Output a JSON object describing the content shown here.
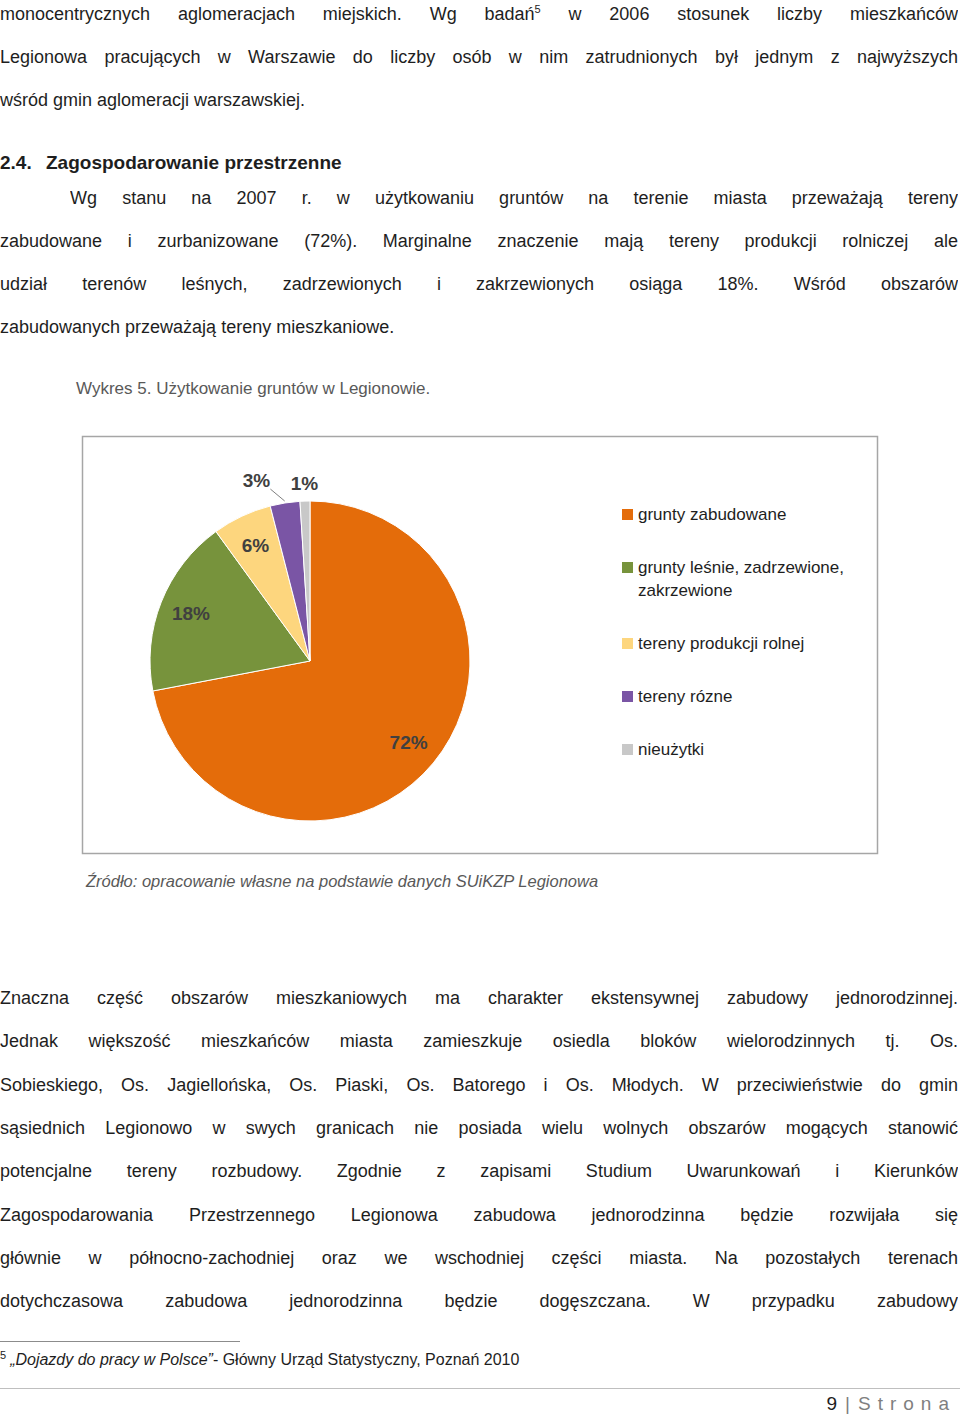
{
  "intro": {
    "lines": [
      {
        "text": "monocentrycznych aglomeracjach miejskich. Wg badań",
        "ref": "5",
        "after": " w 2006 stosunek liczby mieszkańców"
      },
      "Legionowa pracujących w Warszawie do liczby osób w nim zatrudnionych był jednym z najwyższych",
      "wśród gmin aglomeracji warszawskiej."
    ]
  },
  "heading": {
    "number": "2.4.",
    "title": "Zagospodarowanie przestrzenne"
  },
  "paragraph1": {
    "lines": [
      "Wg stanu na 2007 r. w użytkowaniu gruntów na terenie miasta przeważają tereny",
      "zabudowane i zurbanizowane (72%). Marginalne znaczenie mają tereny produkcji rolniczej ale",
      "udział terenów leśnych, zadrzewionych i zakrzewionych osiąga 18%. Wśród obszarów",
      "zabudowanych przeważają tereny mieszkaniowe."
    ]
  },
  "caption": "Wykres 5. Użytkowanie gruntów w Legionowie.",
  "chart_data": {
    "type": "pie",
    "categories": [
      "grunty zabudowane",
      "grunty leśnie, zadrzewione, zakrzewione",
      "tereny produkcji rolnej",
      "tereny rózne",
      "nieużytki"
    ],
    "values": [
      72,
      18,
      6,
      3,
      1
    ],
    "value_labels": [
      "72%",
      "18%",
      "6%",
      "3%",
      "1%"
    ],
    "colors": [
      "#e46c0a",
      "#77933c",
      "#fdd67e",
      "#7a55a5",
      "#c8c8c8"
    ],
    "data_labels": true,
    "legend": "right"
  },
  "source": "Źródło: opracowanie własne na podstawie danych SUiKZP Legionowa",
  "paragraph2": {
    "lines": [
      "Znaczna część obszarów mieszkaniowych ma charakter ekstensywnej zabudowy jednorodzinnej.",
      "Jednak większość mieszkańców miasta zamieszkuje osiedla bloków wielorodzinnych tj. Os.",
      "Sobieskiego, Os. Jagiellońska, Os. Piaski, Os. Batorego i Os. Młodych. W przeciwieństwie do gmin",
      "sąsiednich Legionowo w swych granicach nie posiada wielu wolnych obszarów mogących stanowić",
      "potencjalne tereny rozbudowy. Zgodnie z zapisami Studium Uwarunkowań i Kierunków",
      "Zagospodarowania Przestrzennego Legionowa zabudowa jednorodzinna będzie rozwijała się",
      "głównie w północno-zachodniej oraz we wschodniej części miasta. Na pozostałych terenach",
      "dotychczasowa zabudowa jednorodzinna będzie dogęszczana. W przypadku zabudowy"
    ]
  },
  "footnote": {
    "ref": "5",
    "title": "„Dojazdy do pracy w Polsce”",
    "rest": "- Główny Urząd Statystyczny, Poznań 2010"
  },
  "page_footer": {
    "number": "9",
    "separator": "|",
    "label": "Strona"
  }
}
